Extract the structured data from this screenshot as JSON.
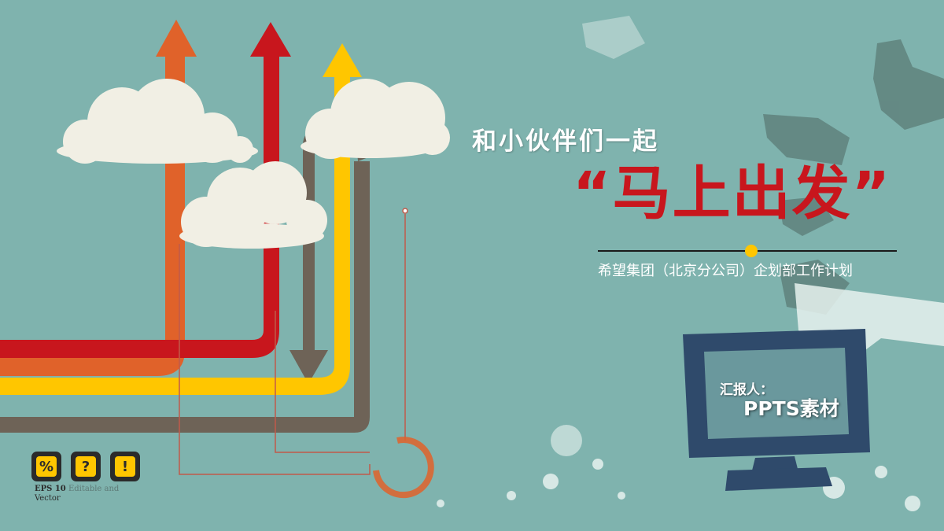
{
  "slide": {
    "subtitle": "和小伙伴们一起",
    "main_title": "“马上出发”",
    "company_line": "希望集团（北京分公司）企划部工作计划",
    "reporter_label": "汇报人：",
    "reporter_name": "PPTS素材"
  },
  "badges": {
    "percent": "%",
    "question": "?",
    "exclamation": "!"
  },
  "eps": {
    "label": "EPS 10",
    "subtext": "Vector",
    "faint_text": "Editable and"
  },
  "colors": {
    "background": "#7fb3ae",
    "red": "#c8161d",
    "orange": "#e0622a",
    "yellow": "#ffc600",
    "brown": "#6e6357",
    "cloud": "#f1efe4",
    "monitor": "#2f4a6b"
  }
}
